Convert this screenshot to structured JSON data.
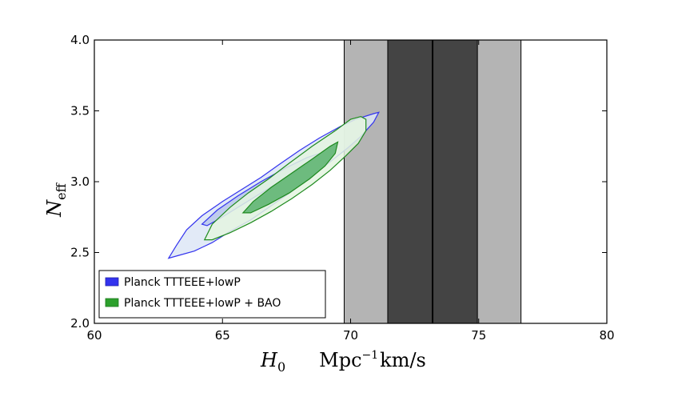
{
  "chart_data": {
    "type": "contour",
    "title": "",
    "xlabel": {
      "symbol": "H",
      "sub": "0",
      "units_main": "Mpc",
      "units_sup": "−1",
      "units_rest": "km/s"
    },
    "ylabel": {
      "symbol": "N",
      "sub": "eff"
    },
    "xlim": [
      60,
      80
    ],
    "ylim": [
      2.0,
      4.0
    ],
    "xticks": [
      60,
      65,
      70,
      75,
      80
    ],
    "xtick_labels": [
      "60",
      "65",
      "70",
      "75",
      "80"
    ],
    "yticks": [
      2.0,
      2.5,
      3.0,
      3.5,
      4.0
    ],
    "ytick_labels": [
      "2.0",
      "2.5",
      "3.0",
      "3.5",
      "4.0"
    ],
    "local_H0": {
      "central": 73.2,
      "sigma1": [
        71.45,
        74.95
      ],
      "sigma2": [
        69.75,
        76.65
      ],
      "band_colors": {
        "sigma1": "#444444",
        "sigma2": "#b4b4b4"
      }
    },
    "series": [
      {
        "name": "Planck TTTEEE+lowP",
        "color": "#3333ee",
        "fill_outer": "#dde6f6",
        "fill_inner": "#a8b8e6",
        "contour_95": [
          [
            62.9,
            2.46
          ],
          [
            63.2,
            2.55
          ],
          [
            63.6,
            2.66
          ],
          [
            64.2,
            2.76
          ],
          [
            65.0,
            2.86
          ],
          [
            65.8,
            2.95
          ],
          [
            66.5,
            3.03
          ],
          [
            67.2,
            3.12
          ],
          [
            68.0,
            3.22
          ],
          [
            68.8,
            3.31
          ],
          [
            69.6,
            3.39
          ],
          [
            70.2,
            3.44
          ],
          [
            70.9,
            3.48
          ],
          [
            71.1,
            3.49
          ],
          [
            70.9,
            3.42
          ],
          [
            70.4,
            3.32
          ],
          [
            69.9,
            3.24
          ],
          [
            69.2,
            3.14
          ],
          [
            68.5,
            3.04
          ],
          [
            67.7,
            2.93
          ],
          [
            66.9,
            2.83
          ],
          [
            66.1,
            2.73
          ],
          [
            65.3,
            2.65
          ],
          [
            64.6,
            2.57
          ],
          [
            63.9,
            2.51
          ],
          [
            63.3,
            2.48
          ],
          [
            62.9,
            2.46
          ]
        ],
        "contour_68": [
          [
            64.2,
            2.7
          ],
          [
            64.8,
            2.8
          ],
          [
            65.6,
            2.9
          ],
          [
            66.5,
            3.0
          ],
          [
            67.5,
            3.1
          ],
          [
            68.3,
            3.17
          ],
          [
            68.8,
            3.2
          ],
          [
            68.3,
            3.12
          ],
          [
            67.5,
            3.03
          ],
          [
            66.6,
            2.93
          ],
          [
            65.7,
            2.83
          ],
          [
            64.9,
            2.74
          ],
          [
            64.4,
            2.69
          ],
          [
            64.2,
            2.7
          ]
        ]
      },
      {
        "name": "Planck TTTEEE+lowP + BAO",
        "color": "#1e8a1e",
        "fill_outer": "#e4f4e0",
        "fill_inner": "#5fb572",
        "contour_95": [
          [
            64.3,
            2.59
          ],
          [
            64.6,
            2.7
          ],
          [
            65.3,
            2.82
          ],
          [
            66.0,
            2.92
          ],
          [
            66.8,
            3.02
          ],
          [
            67.6,
            3.13
          ],
          [
            68.5,
            3.25
          ],
          [
            69.4,
            3.36
          ],
          [
            70.0,
            3.44
          ],
          [
            70.4,
            3.46
          ],
          [
            70.6,
            3.44
          ],
          [
            70.6,
            3.36
          ],
          [
            70.3,
            3.27
          ],
          [
            69.8,
            3.18
          ],
          [
            69.2,
            3.08
          ],
          [
            68.5,
            2.98
          ],
          [
            67.7,
            2.88
          ],
          [
            66.9,
            2.79
          ],
          [
            66.1,
            2.71
          ],
          [
            65.3,
            2.64
          ],
          [
            64.6,
            2.59
          ],
          [
            64.3,
            2.59
          ]
        ],
        "contour_68": [
          [
            65.8,
            2.78
          ],
          [
            66.2,
            2.86
          ],
          [
            66.9,
            2.96
          ],
          [
            67.7,
            3.06
          ],
          [
            68.5,
            3.16
          ],
          [
            69.2,
            3.25
          ],
          [
            69.5,
            3.28
          ],
          [
            69.4,
            3.2
          ],
          [
            69.0,
            3.11
          ],
          [
            68.4,
            3.02
          ],
          [
            67.6,
            2.92
          ],
          [
            66.8,
            2.84
          ],
          [
            66.1,
            2.78
          ],
          [
            65.8,
            2.78
          ]
        ]
      }
    ],
    "legend": {
      "placement": "lower-left",
      "entries": [
        {
          "label": "Planck TTTEEE+lowP",
          "color": "#3333ee"
        },
        {
          "label": "Planck TTTEEE+lowP + BAO",
          "color": "#2ca02c"
        }
      ]
    }
  }
}
